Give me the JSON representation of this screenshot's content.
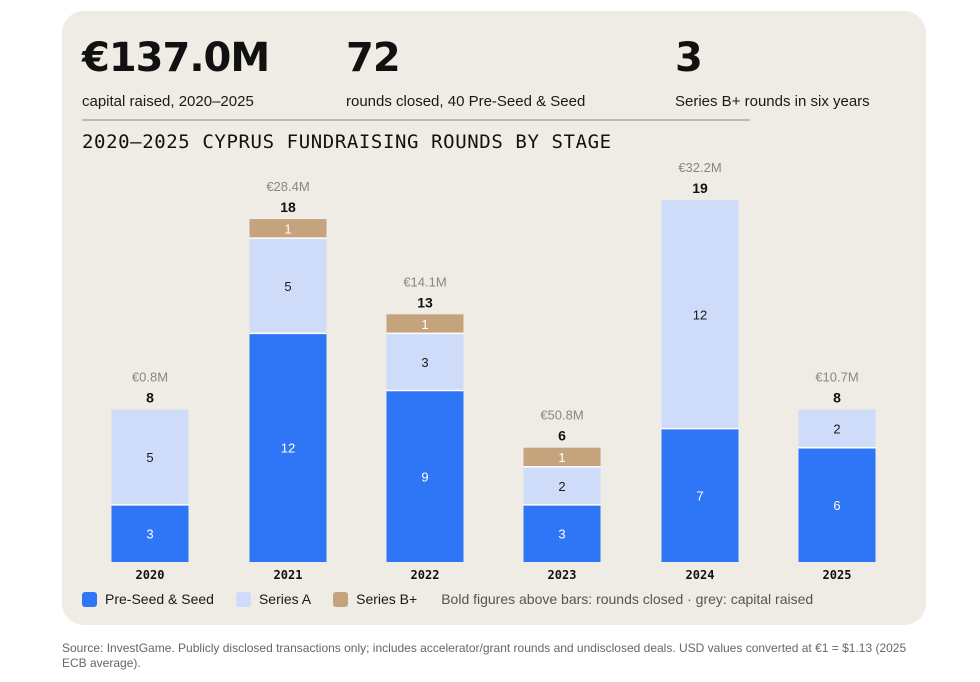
{
  "kpis": [
    {
      "value": "€137.0M",
      "label": "capital raised, 2020–2025"
    },
    {
      "value": "72",
      "label": "rounds closed, 40 Pre-Seed & Seed"
    },
    {
      "value": "3",
      "label": "Series B+ rounds in six years"
    }
  ],
  "legend_note": "Bold figures above bars: rounds closed · grey: capital raised",
  "source": "Source: InvestGame. Publicly disclosed transactions only; includes accelerator/grant rounds and undisclosed deals. USD values converted at €1 = $1.13 (2025 ECB average).",
  "colors": {
    "pre_seed": "#2f76f6",
    "series_a": "#cfdcf9",
    "series_b": "#c5a47d",
    "card_bg": "#efebe5"
  },
  "chart_data": {
    "type": "bar",
    "stacked": true,
    "title": "2020–2025 CYPRUS FUNDRAISING ROUNDS BY STAGE",
    "xlabel": "",
    "ylabel": "",
    "categories": [
      "2020",
      "2021",
      "2022",
      "2023",
      "2024",
      "2025"
    ],
    "series": [
      {
        "name": "Pre-Seed & Seed",
        "values": [
          3,
          12,
          9,
          3,
          7,
          6
        ]
      },
      {
        "name": "Series A",
        "values": [
          5,
          5,
          3,
          2,
          12,
          2
        ]
      },
      {
        "name": "Series B+",
        "values": [
          0,
          1,
          1,
          1,
          0,
          0
        ]
      }
    ],
    "totals": [
      8,
      18,
      13,
      6,
      19,
      8
    ],
    "capital_labels": [
      "€0.8M",
      "€28.4M",
      "€14.1M",
      "€50.8M",
      "€32.2M",
      "€10.7M"
    ],
    "ylim": [
      0,
      19
    ],
    "grid": false,
    "legend_position": "bottom-left"
  }
}
